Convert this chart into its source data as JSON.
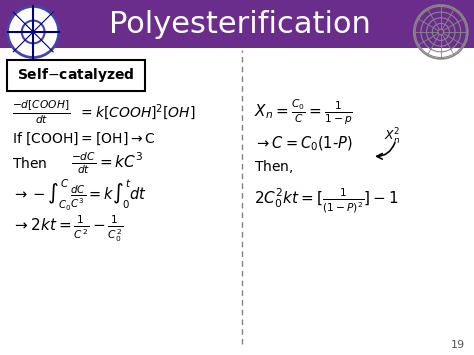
{
  "title": "Polyesterification",
  "header_bg": "#6B2D8B",
  "header_text_color": "#FFFFFF",
  "body_bg": "#FFFFFF",
  "body_text_color": "#000000",
  "purple_color": "#6B2D8B",
  "slide_number": "19",
  "title_fontsize": 22,
  "content_fontsize": 11,
  "label_fontsize": 10
}
